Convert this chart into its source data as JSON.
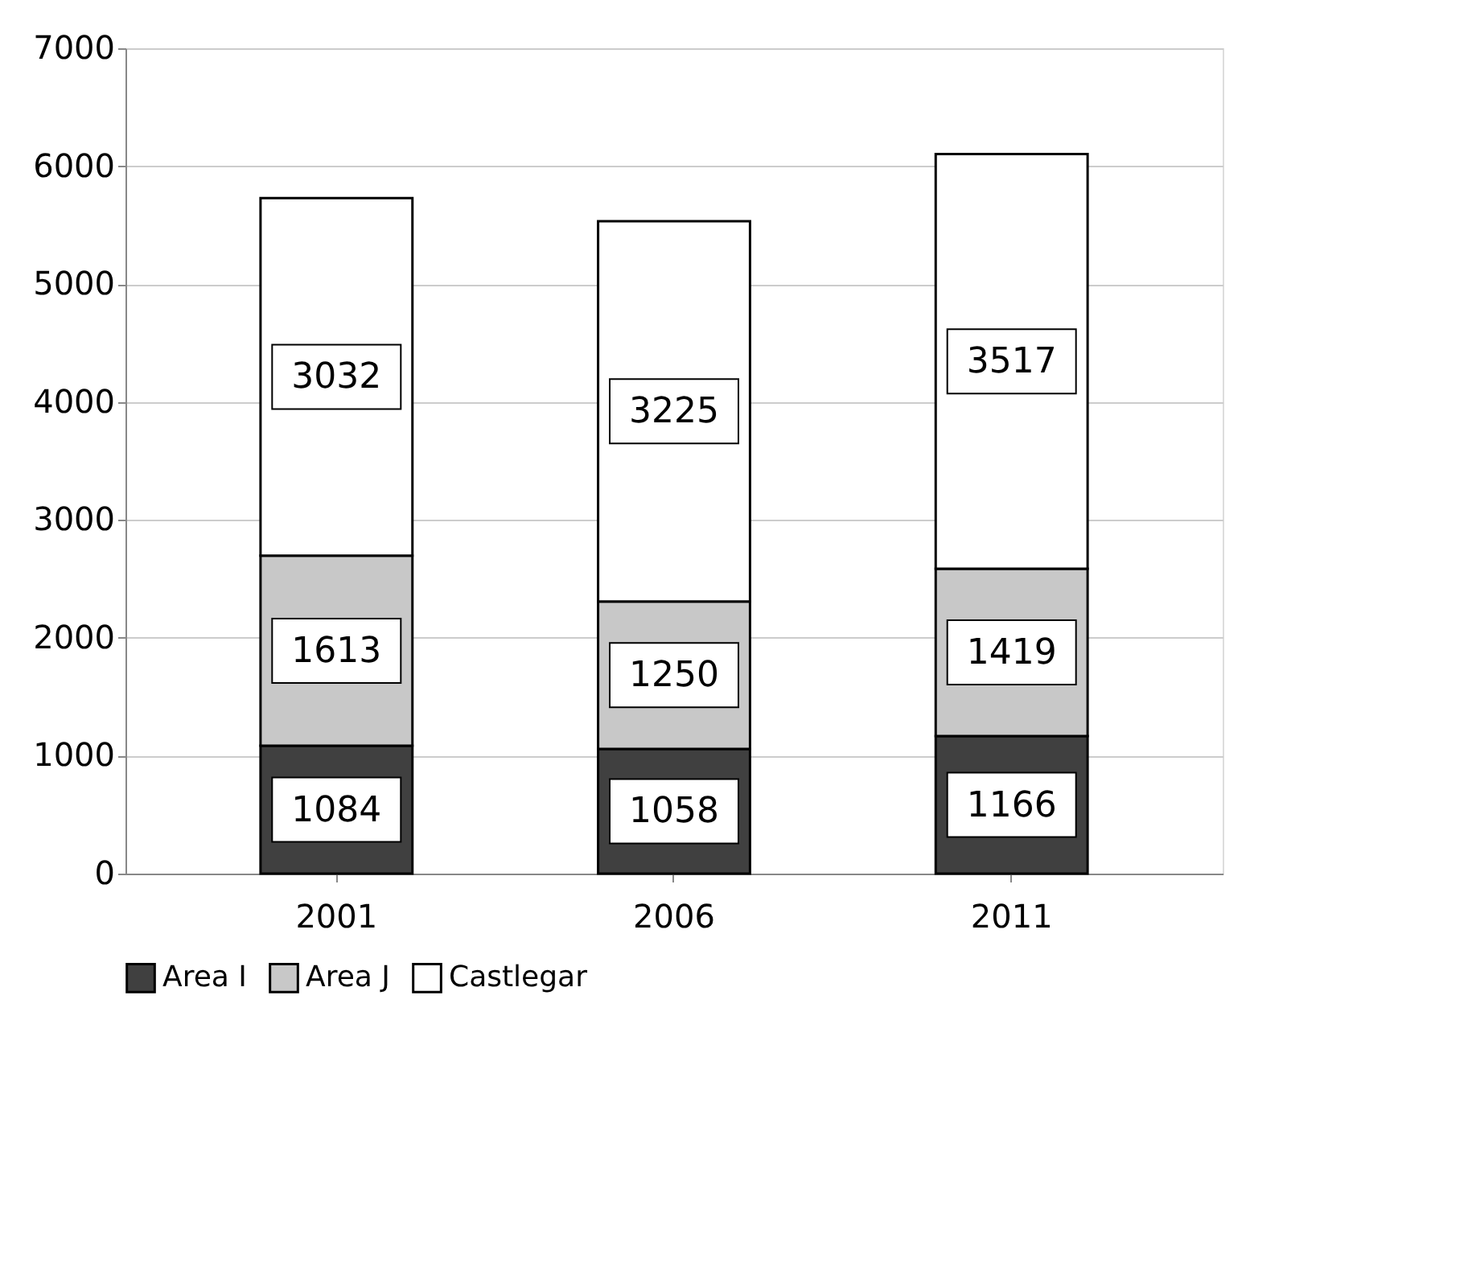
{
  "chart_data": {
    "type": "bar",
    "stacked": true,
    "categories": [
      "2001",
      "2006",
      "2011"
    ],
    "series": [
      {
        "name": "Area I",
        "color": "#404040",
        "values": [
          1084,
          1058,
          1166
        ]
      },
      {
        "name": "Area J",
        "color": "#c8c8c8",
        "values": [
          1613,
          1250,
          1419
        ]
      },
      {
        "name": "Castlegar",
        "color": "#ffffff",
        "values": [
          3032,
          3225,
          3517
        ]
      }
    ],
    "ylim": [
      0,
      7000
    ],
    "yticks": [
      0,
      1000,
      2000,
      3000,
      4000,
      5000,
      6000,
      7000
    ],
    "grid": "y",
    "legend": "bottom",
    "data_labels": true
  }
}
